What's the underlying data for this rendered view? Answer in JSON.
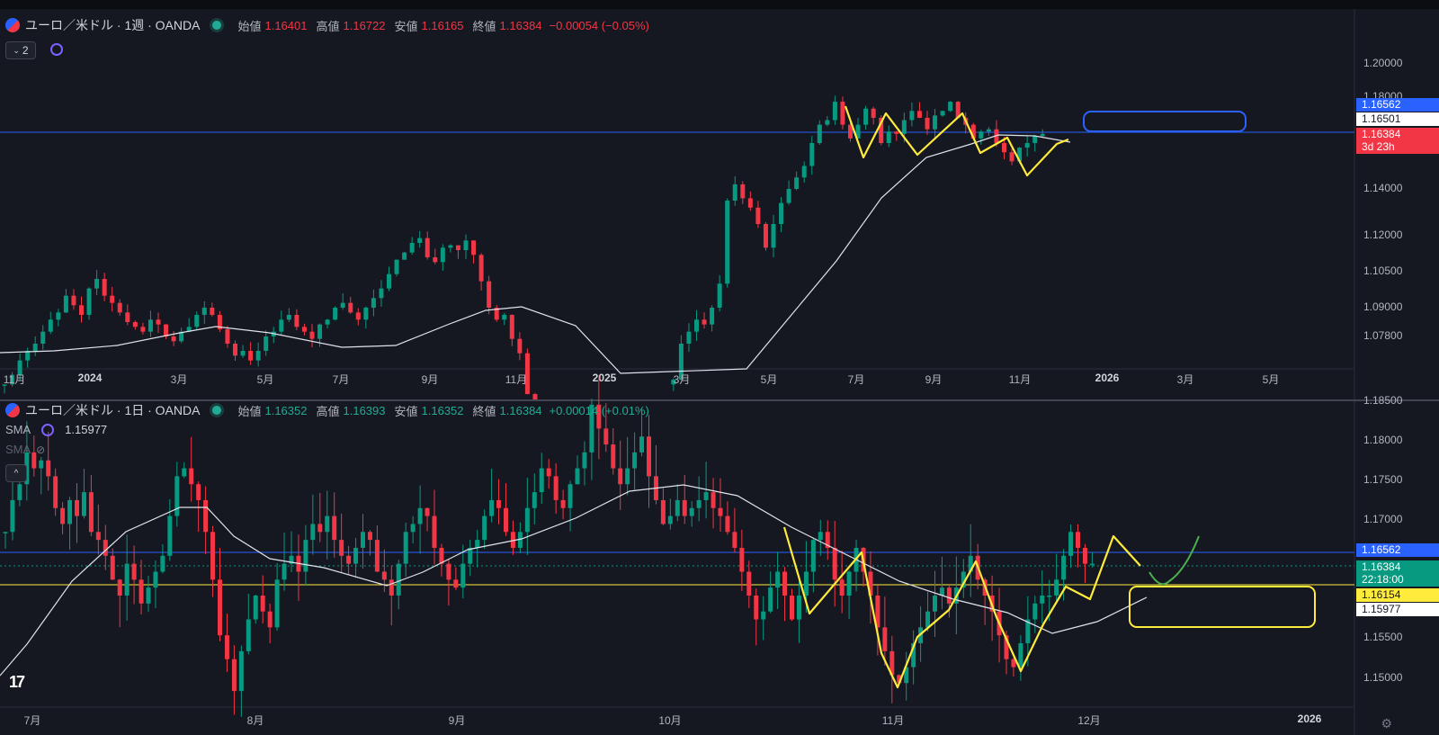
{
  "top": {
    "symbol": "ユーロ／米ドル · 1週 · OANDA",
    "ohlc": {
      "open_label": "始値",
      "open": "1.16401",
      "high_label": "高値",
      "high": "1.16722",
      "low_label": "安値",
      "low": "1.16165",
      "close_label": "終値",
      "close": "1.16384",
      "change": "−0.00054 (−0.05%)"
    },
    "indicator_count": "2",
    "price_axis": [
      "1.20000",
      "1.18000",
      "1.14000",
      "1.12000",
      "1.10500",
      "1.09000",
      "1.07800"
    ],
    "time_axis": [
      "11月",
      "2024",
      "3月",
      "5月",
      "7月",
      "9月",
      "11月",
      "2025",
      "3月",
      "5月",
      "7月",
      "9月",
      "11月",
      "2026",
      "3月",
      "5月"
    ],
    "time_axis_bold": [
      "2024",
      "2025",
      "2026"
    ],
    "tags": [
      {
        "value": "1.16562",
        "bg": "#2962ff",
        "fg": "#ffffff"
      },
      {
        "value": "1.16501",
        "bg": "#ffffff",
        "fg": "#131722"
      },
      {
        "value": "1.16384",
        "bg": "#f23645",
        "fg": "#ffffff"
      },
      {
        "value": "3d 23h",
        "bg": "#f23645",
        "fg": "#ffffff"
      }
    ]
  },
  "bottom": {
    "symbol": "ユーロ／米ドル · 1日 · OANDA",
    "ohlc": {
      "open_label": "始値",
      "open": "1.16352",
      "high_label": "高値",
      "high": "1.16393",
      "low_label": "安値",
      "low": "1.16352",
      "close_label": "終値",
      "close": "1.16384",
      "change": "+0.00014 (+0.01%)"
    },
    "sma_label": "SMA",
    "sma_value": "1.15977",
    "sma2_label": "SMA",
    "price_axis": [
      "1.18500",
      "1.18000",
      "1.17500",
      "1.17000",
      "1.15500",
      "1.15000"
    ],
    "time_axis": [
      "7月",
      "8月",
      "9月",
      "10月",
      "11月",
      "12月",
      "2026"
    ],
    "time_axis_bold": [
      "2026"
    ],
    "tags": [
      {
        "value": "1.16562",
        "bg": "#2962ff",
        "fg": "#ffffff"
      },
      {
        "value": "1.16384",
        "bg": "#089981",
        "fg": "#ffffff"
      },
      {
        "value": "22:18:00",
        "bg": "#089981",
        "fg": "#ffffff"
      },
      {
        "value": "1.16154",
        "bg": "#ffeb3b",
        "fg": "#131722"
      },
      {
        "value": "1.15977",
        "bg": "#ffffff",
        "fg": "#131722"
      }
    ]
  },
  "colors": {
    "up": "#089981",
    "down": "#f23645",
    "zigzag": "#ffeb3b",
    "forecast": "#4caf50",
    "sma": "#e0e3eb",
    "blue_line": "#2962ff",
    "yellow_line": "#ffeb3b"
  },
  "tradingview_logo": "17"
}
